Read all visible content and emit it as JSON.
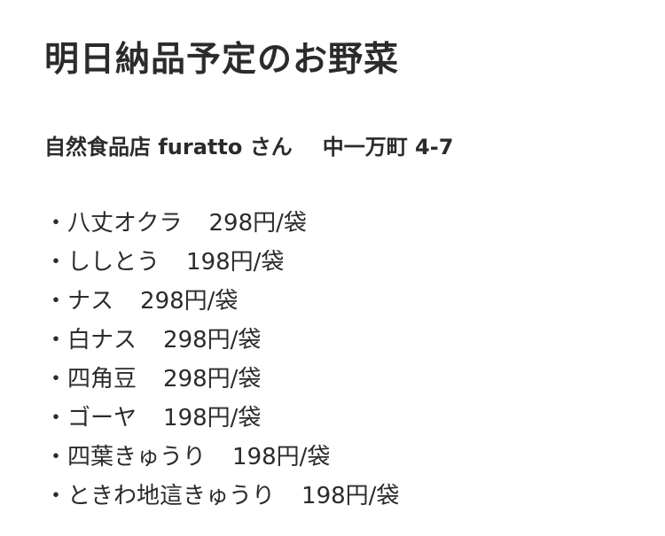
{
  "title": "明日納品予定のお野菜",
  "shop": {
    "name": "自然食品店 furatto さん",
    "address": "中一万町 4-7"
  },
  "bullet": "・",
  "items": [
    {
      "name": "八丈オクラ",
      "price": "298円/袋"
    },
    {
      "name": "ししとう",
      "price": "198円/袋"
    },
    {
      "name": "ナス",
      "price": "298円/袋"
    },
    {
      "name": "白ナス",
      "price": "298円/袋"
    },
    {
      "name": "四角豆",
      "price": "298円/袋"
    },
    {
      "name": "ゴーヤ",
      "price": "198円/袋"
    },
    {
      "name": "四葉きゅうり",
      "price": "198円/袋"
    },
    {
      "name": "ときわ地這きゅうり",
      "price": "198円/袋"
    }
  ]
}
